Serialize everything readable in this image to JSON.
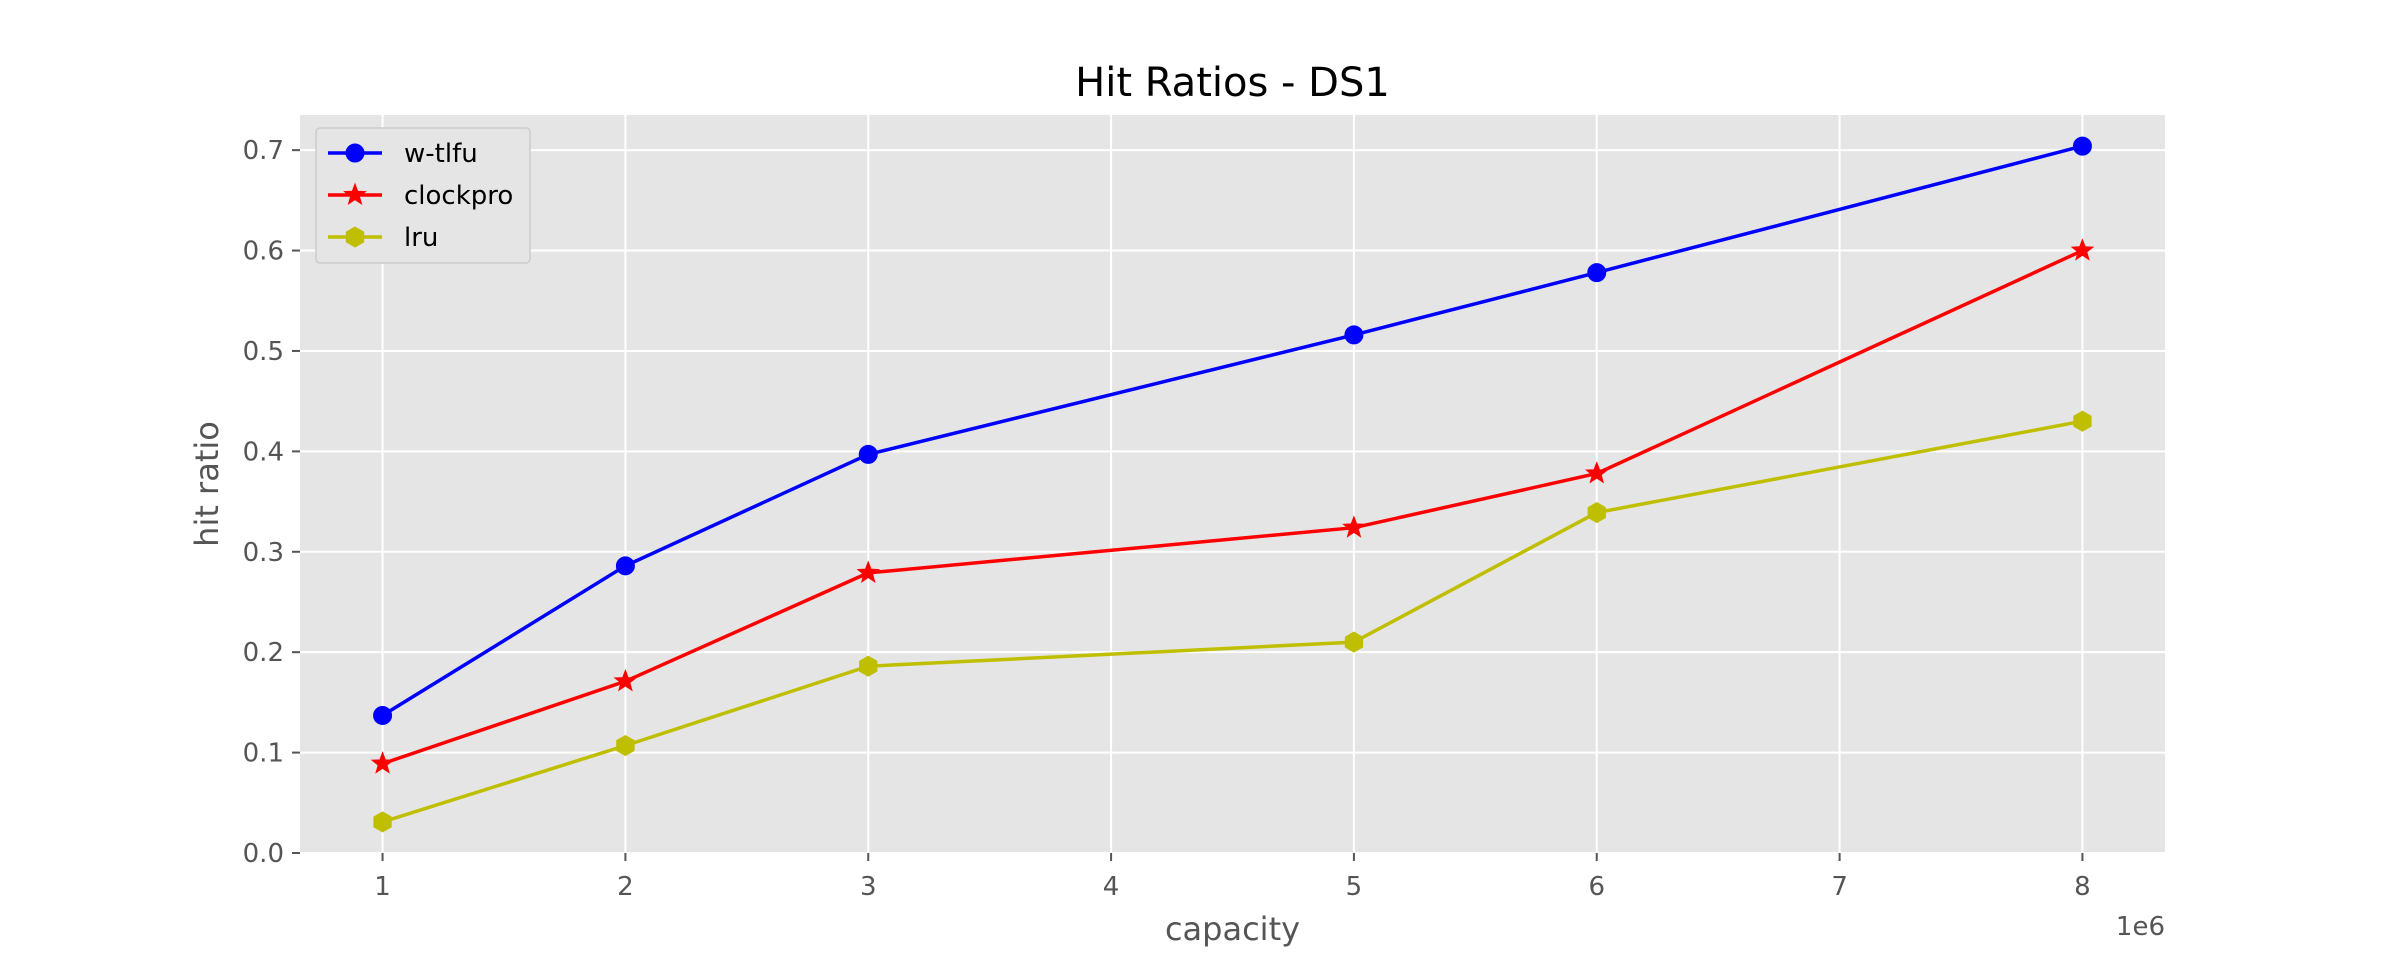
{
  "chart_data": {
    "type": "line",
    "title": "Hit Ratios - DS1",
    "xlabel": "capacity",
    "ylabel": "hit ratio",
    "x_offset_label": "1e6",
    "x": [
      1,
      2,
      3,
      5,
      6,
      8
    ],
    "xlim": [
      0.66,
      8.34
    ],
    "ylim": [
      0.0,
      0.735
    ],
    "xticks": [
      1,
      2,
      3,
      4,
      5,
      6,
      7,
      8
    ],
    "xtick_labels": [
      "1",
      "2",
      "3",
      "4",
      "5",
      "6",
      "7",
      "8"
    ],
    "yticks": [
      0.0,
      0.1,
      0.2,
      0.3,
      0.4,
      0.5,
      0.6,
      0.7
    ],
    "ytick_labels": [
      "0.0",
      "0.1",
      "0.2",
      "0.3",
      "0.4",
      "0.5",
      "0.6",
      "0.7"
    ],
    "grid": true,
    "legend_position": "top-left",
    "series": [
      {
        "name": "w-tlfu",
        "color": "#0000ff",
        "marker": "circle",
        "values": [
          0.137,
          0.286,
          0.397,
          0.516,
          0.578,
          0.704
        ]
      },
      {
        "name": "clockpro",
        "color": "#ff0000",
        "marker": "star",
        "values": [
          0.089,
          0.171,
          0.279,
          0.324,
          0.378,
          0.6
        ]
      },
      {
        "name": "lru",
        "color": "#bfbf00",
        "marker": "hexagon",
        "values": [
          0.031,
          0.107,
          0.186,
          0.21,
          0.339,
          0.43
        ]
      }
    ]
  }
}
